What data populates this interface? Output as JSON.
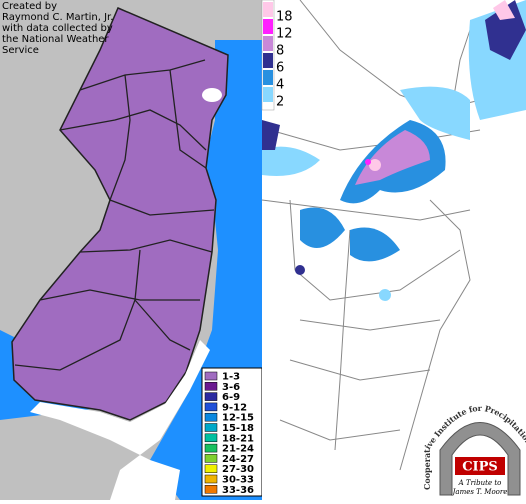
{
  "credit": [
    "Created by",
    "Raymond C. Martin, Jr.",
    "with data collected by",
    "the National Weather",
    "Service"
  ],
  "snowfall_legend": [
    {
      "label": "1-3",
      "color": "#a06cc0"
    },
    {
      "label": "3-6",
      "color": "#6a1a90"
    },
    {
      "label": "6-9",
      "color": "#2a2aa0"
    },
    {
      "label": "9-12",
      "color": "#2050d8"
    },
    {
      "label": "12-15",
      "color": "#0a88e0"
    },
    {
      "label": "15-18",
      "color": "#00a8c8"
    },
    {
      "label": "18-21",
      "color": "#00c0a0"
    },
    {
      "label": "21-24",
      "color": "#18c060"
    },
    {
      "label": "24-27",
      "color": "#80d030"
    },
    {
      "label": "27-30",
      "color": "#f0f000"
    },
    {
      "label": "30-33",
      "color": "#f0b400"
    },
    {
      "label": "33-36",
      "color": "#f07800"
    }
  ],
  "accumulation_scale": [
    {
      "label": "18",
      "color": "#ffc8e8"
    },
    {
      "label": "12",
      "color": "#ff20ff"
    },
    {
      "label": "8",
      "color": "#c888d8"
    },
    {
      "label": "6",
      "color": "#303090"
    },
    {
      "label": "4",
      "color": "#2890e0"
    },
    {
      "label": "2",
      "color": "#88d8ff"
    }
  ],
  "logo": {
    "arc_text": "Cooperative Institute for Precipitation Systems",
    "acronym": "CIPS",
    "tribute": [
      "A Tribute to",
      "James T. Moore"
    ]
  }
}
